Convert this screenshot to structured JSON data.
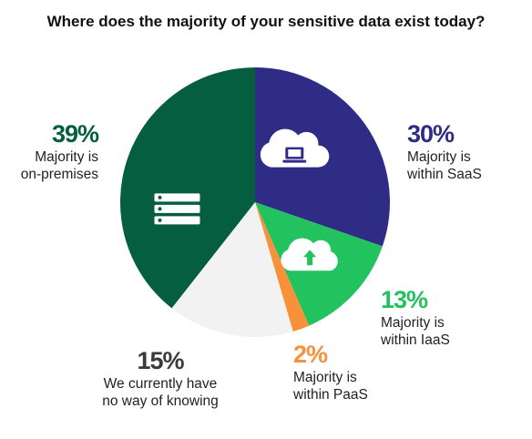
{
  "chart_data": {
    "type": "pie",
    "title": "Where does the majority of your sensitive data exist today?",
    "slices": [
      {
        "pct_label": "30%",
        "label_lines": [
          "Majority is",
          "within SaaS"
        ],
        "value": 30,
        "color": "#2e2c84",
        "icon": "cloud-laptop-icon"
      },
      {
        "pct_label": "13%",
        "label_lines": [
          "Majority is",
          "within IaaS"
        ],
        "value": 13,
        "color": "#22c35e",
        "icon": "cloud-upload-icon"
      },
      {
        "pct_label": "2%",
        "label_lines": [
          "Majority is",
          "within PaaS"
        ],
        "value": 2,
        "color": "#f7913a",
        "icon": ""
      },
      {
        "pct_label": "15%",
        "label_lines": [
          "We currently have",
          "no way of knowing"
        ],
        "value": 15,
        "color": "#f2f2f2",
        "icon": ""
      },
      {
        "pct_label": "39%",
        "label_lines": [
          "Majority is",
          "on-premises"
        ],
        "value": 39,
        "color": "#045e3f",
        "icon": "server-rack-icon"
      }
    ]
  }
}
